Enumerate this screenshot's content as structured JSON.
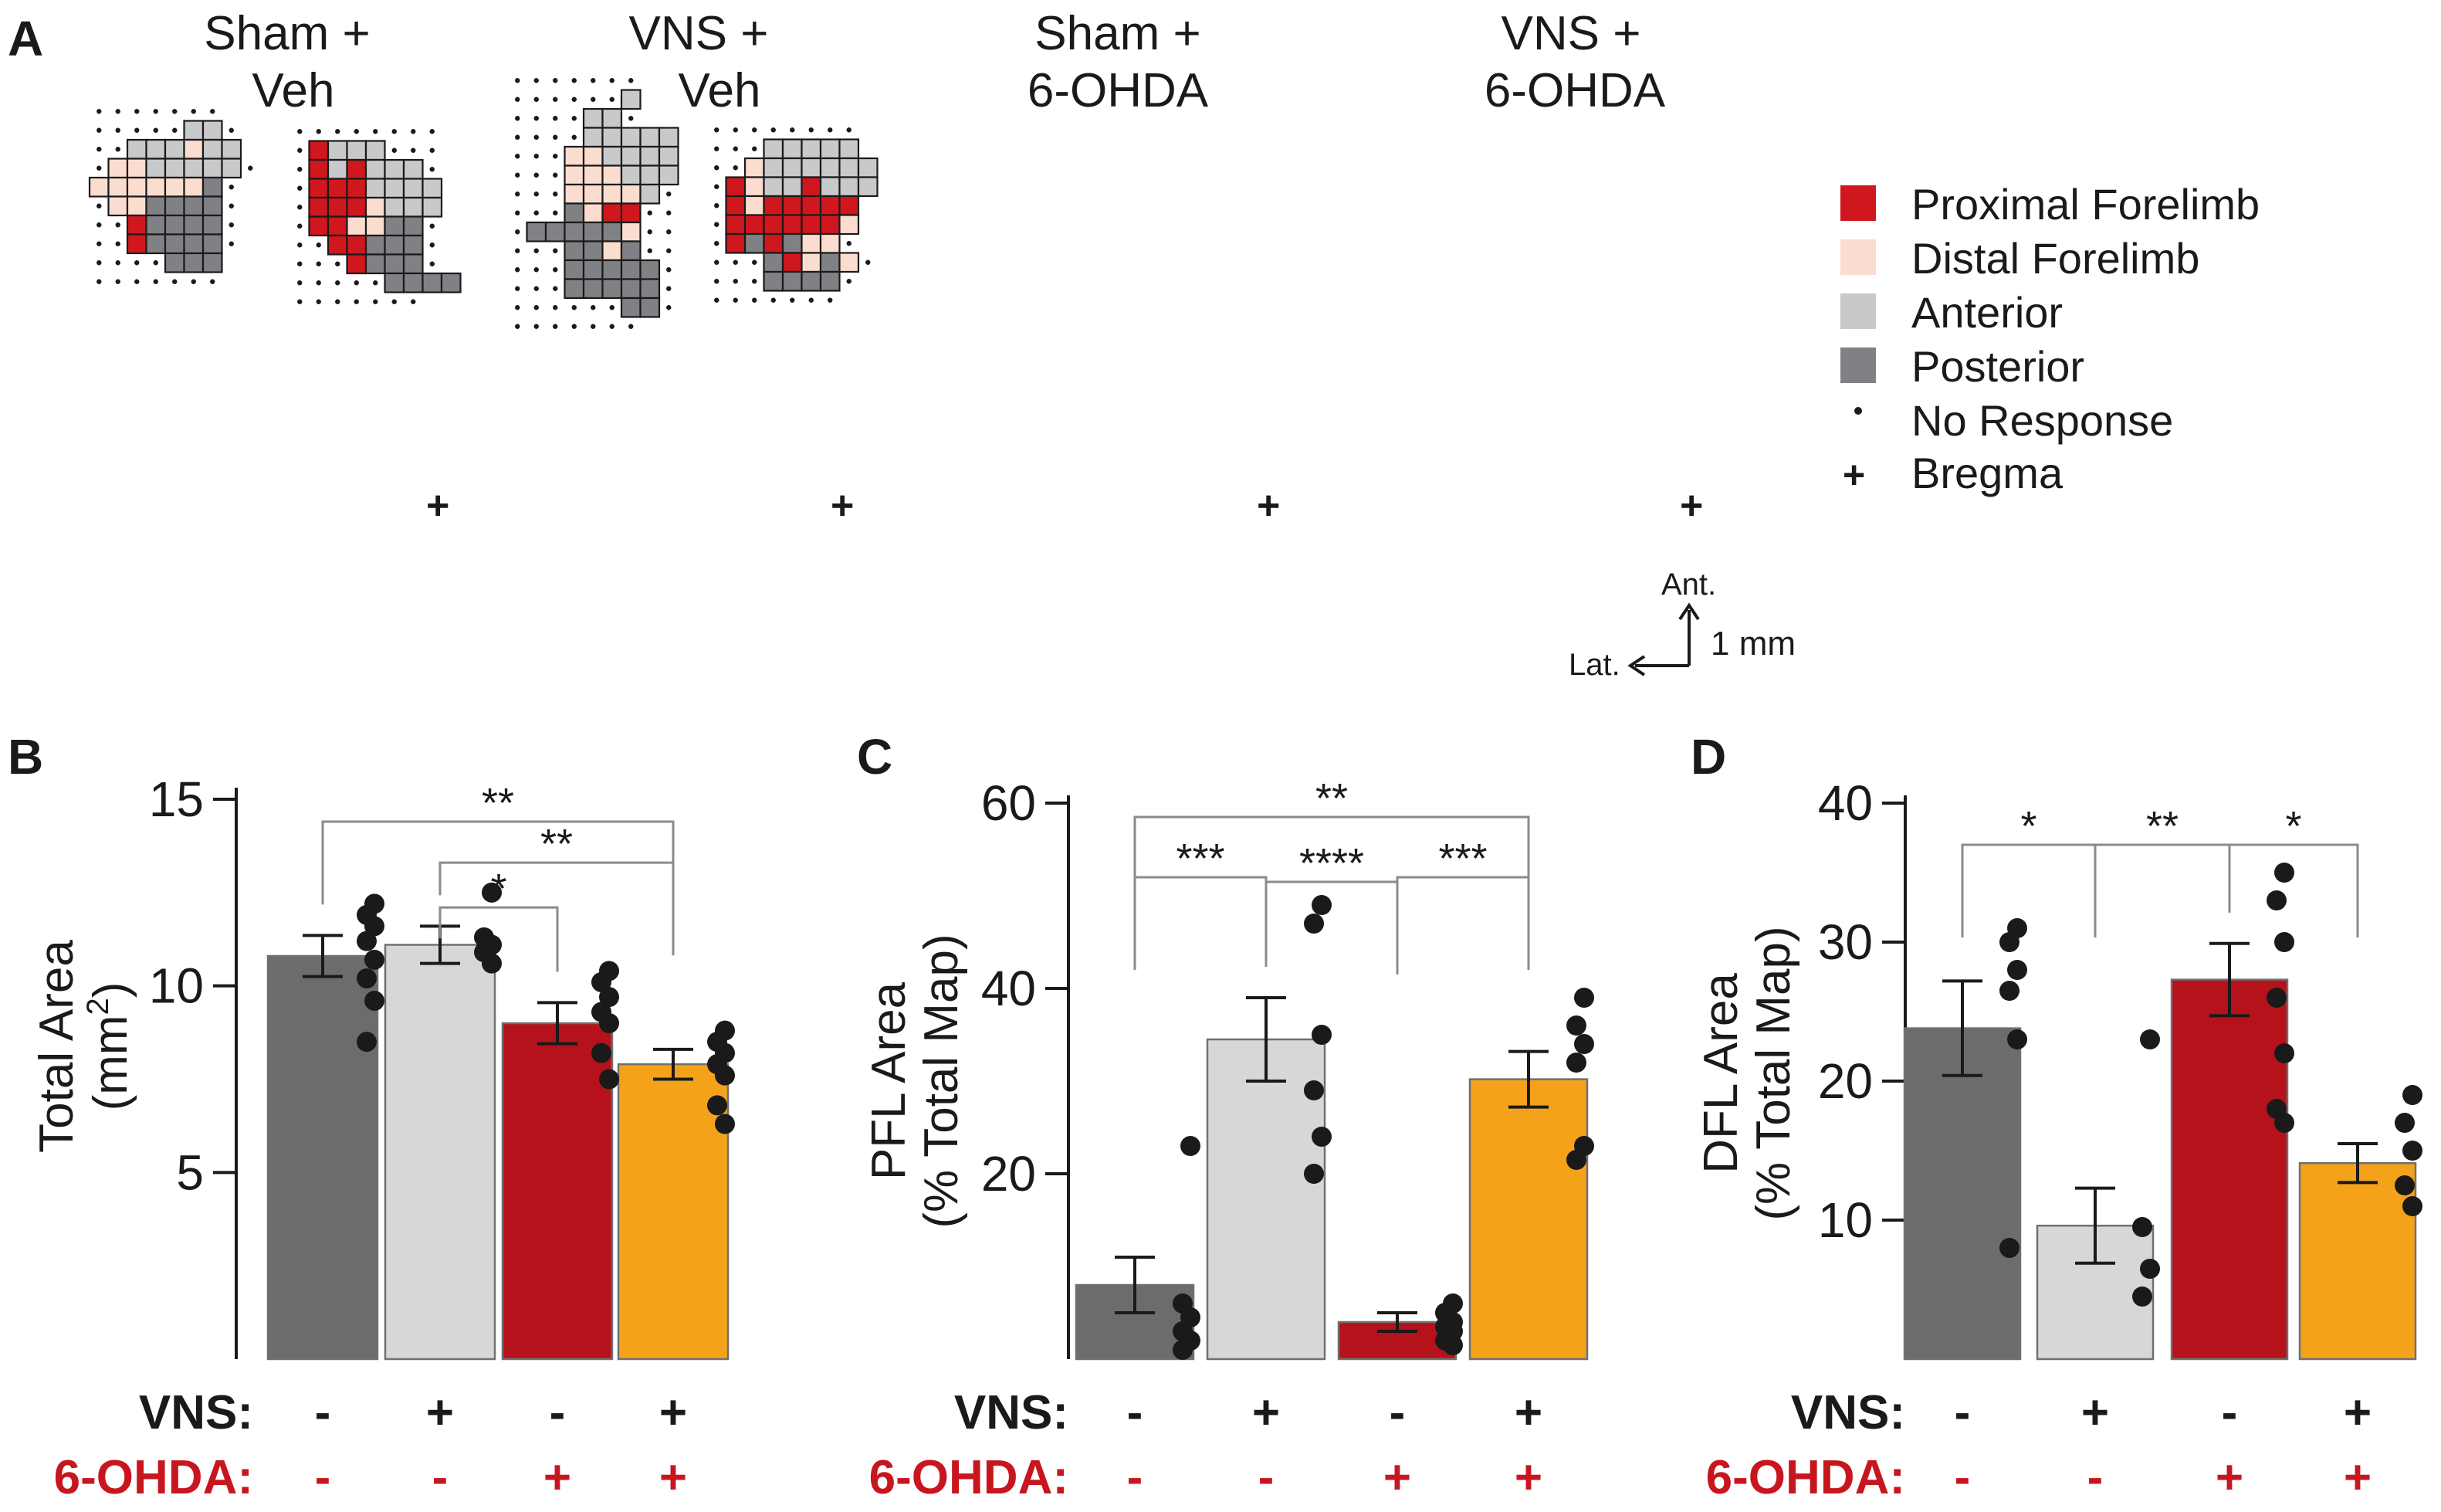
{
  "figure": {
    "panels": {
      "a": {
        "label": "A"
      },
      "b": {
        "label": "B"
      },
      "c": {
        "label": "C"
      },
      "d": {
        "label": "D"
      }
    },
    "groups": [
      {
        "line1": "Sham +",
        "line2": "Veh"
      },
      {
        "line1": "VNS +",
        "line2": "Veh"
      },
      {
        "line1": "Sham +",
        "line2": "6-OHDA"
      },
      {
        "line1": "VNS +",
        "line2": "6-OHDA"
      }
    ],
    "legend": [
      {
        "label": "Proximal Forelimb",
        "color": "#d0171e"
      },
      {
        "label": "Distal Forelimb",
        "color": "#fbddd0"
      },
      {
        "label": "Anterior",
        "color": "#c8c9cb"
      },
      {
        "label": "Posterior",
        "color": "#808184"
      },
      {
        "label": "No Response",
        "symbol": "·"
      },
      {
        "label": "Bregma",
        "symbol": "+"
      }
    ],
    "scale": {
      "ant": "Ant.",
      "lat": "Lat.",
      "length": "1 mm"
    },
    "bregma_symbol": "+",
    "treatment_rows": {
      "vns_label": "VNS:",
      "ohda_label": "6-OHDA:",
      "vns": [
        "-",
        "+",
        "-",
        "+"
      ],
      "ohda": [
        "-",
        "-",
        "+",
        "+"
      ],
      "vns_color": "#1a1a1a",
      "ohda_color": "#c8161e"
    },
    "bar_colors": [
      "#6b6c6e",
      "#d6d7d9",
      "#b5121b",
      "#f5a21b"
    ]
  },
  "chart_data": [
    {
      "type": "bar",
      "panel": "B",
      "ylabel_line1": "Total Area",
      "ylabel_line2": "(mm",
      "ylabel_sup": "2",
      "ylabel_end": ")",
      "ylim": [
        0,
        15
      ],
      "yticks": [
        5,
        10,
        15
      ],
      "values": [
        10.8,
        11.1,
        9.0,
        7.9
      ],
      "errors": [
        0.55,
        0.5,
        0.55,
        0.4
      ],
      "points": [
        [
          12.2,
          11.9,
          11.6,
          11.2,
          10.7,
          10.2,
          9.6,
          8.5
        ],
        [
          12.5,
          11.3,
          11.1,
          10.9,
          10.6
        ],
        [
          10.4,
          10.1,
          9.7,
          9.3,
          9.0,
          8.2,
          7.5
        ],
        [
          8.8,
          8.5,
          8.2,
          7.9,
          7.6,
          6.8,
          6.3
        ]
      ],
      "brackets": [
        {
          "from": 0,
          "to": 3,
          "y": 14.4,
          "label": "**"
        },
        {
          "from": 1,
          "to": 3,
          "y": 13.3,
          "label": "**"
        },
        {
          "from": 1,
          "to": 2,
          "y": 12.1,
          "label": "*"
        }
      ]
    },
    {
      "type": "bar",
      "panel": "C",
      "ylabel_line1": "PFL Area",
      "ylabel_line2": "(% Total Map)",
      "ylim": [
        0,
        60
      ],
      "yticks": [
        20,
        40,
        60
      ],
      "values": [
        8,
        34.5,
        4,
        30.2
      ],
      "errors": [
        3,
        4.5,
        1,
        3
      ],
      "points": [
        [
          23,
          6,
          4.5,
          3,
          2,
          1
        ],
        [
          49,
          47,
          35,
          29,
          24,
          20
        ],
        [
          6,
          5,
          4,
          3.5,
          3,
          2,
          1.5
        ],
        [
          39,
          36,
          34,
          32,
          23,
          21.5
        ]
      ],
      "brackets": [
        {
          "from": 0,
          "to": 3,
          "y": 58.5,
          "label": "**"
        },
        {
          "from": 0,
          "to": 1,
          "y": 52,
          "label": "***"
        },
        {
          "from": 1,
          "to": 2,
          "y": 51.5,
          "label": "****"
        },
        {
          "from": 2,
          "to": 3,
          "y": 52,
          "label": "***"
        }
      ]
    },
    {
      "type": "bar",
      "panel": "D",
      "ylabel_line1": "DFL Area",
      "ylabel_line2": "(% Total Map)",
      "ylim": [
        0,
        40
      ],
      "yticks": [
        10,
        20,
        30,
        40
      ],
      "values": [
        23.8,
        9.6,
        27.3,
        14.1
      ],
      "errors": [
        3.4,
        2.7,
        2.6,
        1.4
      ],
      "points": [
        [
          31,
          30,
          28,
          26.5,
          23,
          8
        ],
        [
          23,
          9.5,
          6.5,
          4.5
        ],
        [
          35,
          33,
          30,
          26,
          22,
          18,
          17
        ],
        [
          19,
          17,
          15,
          12.5,
          11
        ]
      ],
      "brackets": [
        {
          "from": 0,
          "to": 1,
          "y": 37,
          "label": "*"
        },
        {
          "from": 1,
          "to": 2,
          "y": 37,
          "label": "**"
        },
        {
          "from": 2,
          "to": 3,
          "y": 37,
          "label": "*"
        }
      ]
    }
  ]
}
